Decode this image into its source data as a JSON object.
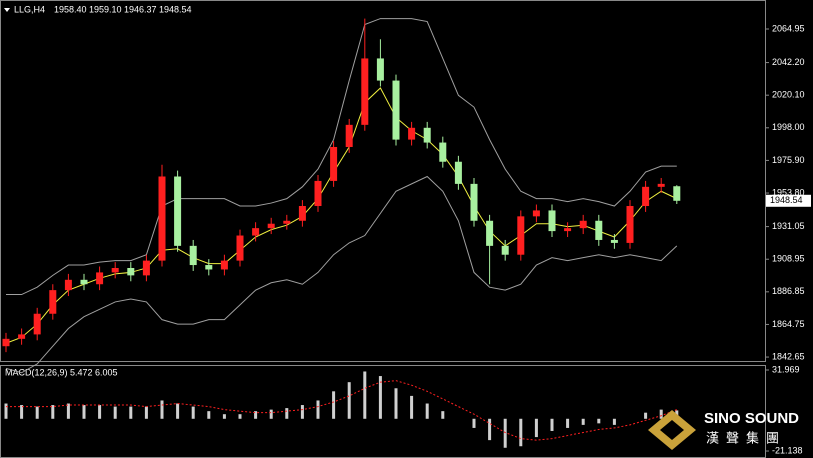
{
  "chart_data": [
    {
      "type": "candlestick",
      "title": "LLG,H4",
      "header_values": [
        "1958.40",
        "1959.10",
        "1946.37",
        "1948.54"
      ],
      "open": [
        1850,
        1855,
        1858,
        1872,
        1888,
        1895,
        1892,
        1900,
        1903,
        1898,
        1908,
        1965,
        1918,
        1905,
        1902,
        1908,
        1925,
        1930,
        1933,
        1935,
        1945,
        1962,
        1985,
        2000,
        2045,
        2030,
        1990,
        1998,
        1988,
        1975,
        1960,
        1935,
        1918,
        1912,
        1938,
        1942,
        1928,
        1930,
        1935,
        1922,
        1920,
        1945,
        1958,
        1958.4
      ],
      "high": [
        1859,
        1862,
        1876,
        1892,
        1899,
        1899,
        1904,
        1907,
        1907,
        1912,
        1973,
        1969,
        1922,
        1909,
        1912,
        1929,
        1934,
        1937,
        1939,
        1949,
        1966,
        1989,
        2004,
        2072,
        2058,
        2034,
        2002,
        2002,
        1992,
        1979,
        1964,
        1939,
        1922,
        1942,
        1946,
        1946,
        1934,
        1939,
        1939,
        1926,
        1949,
        1962,
        1964,
        1959.1
      ],
      "low": [
        1846,
        1851,
        1854,
        1868,
        1884,
        1888,
        1888,
        1896,
        1894,
        1894,
        1904,
        1914,
        1901,
        1898,
        1898,
        1904,
        1921,
        1926,
        1929,
        1931,
        1941,
        1958,
        1981,
        1996,
        2026,
        1986,
        1986,
        1984,
        1971,
        1956,
        1931,
        1892,
        1908,
        1908,
        1934,
        1924,
        1924,
        1926,
        1918,
        1916,
        1916,
        1941,
        1954,
        1946.37
      ],
      "close": [
        1855,
        1858,
        1872,
        1888,
        1895,
        1892,
        1900,
        1903,
        1898,
        1908,
        1965,
        1918,
        1905,
        1902,
        1908,
        1925,
        1930,
        1933,
        1935,
        1945,
        1962,
        1985,
        2000,
        2045,
        2030,
        1990,
        1998,
        1988,
        1975,
        1960,
        1935,
        1918,
        1912,
        1938,
        1942,
        1928,
        1930,
        1935,
        1922,
        1920,
        1945,
        1958,
        1960,
        1948.54
      ],
      "up_color": "#ff2020",
      "down_color": "#a8f0a0",
      "series": [
        {
          "color": "#f0f040",
          "values": [
            1852,
            1856,
            1865,
            1878,
            1888,
            1892,
            1896,
            1899,
            1900,
            1903,
            1915,
            1916,
            1910,
            1906,
            1906,
            1915,
            1924,
            1929,
            1932,
            1938,
            1950,
            1968,
            1985,
            2015,
            2025,
            2005,
            1996,
            1990,
            1980,
            1965,
            1945,
            1928,
            1918,
            1925,
            1933,
            1933,
            1931,
            1932,
            1928,
            1924,
            1935,
            1948,
            1955,
            1950
          ]
        },
        {
          "color": "#a0a0a0",
          "values": [
            1885,
            1885,
            1890,
            1898,
            1905,
            1905,
            1907,
            1908,
            1908,
            1912,
            1945,
            1950,
            1950,
            1950,
            1950,
            1945,
            1945,
            1947,
            1950,
            1958,
            1970,
            1990,
            2030,
            2068,
            2072,
            2072,
            2072,
            2070,
            2045,
            2020,
            2012,
            1990,
            1970,
            1955,
            1950,
            1950,
            1948,
            1950,
            1948,
            1945,
            1955,
            1968,
            1972,
            1972
          ]
        },
        {
          "color": "#a0a0a0",
          "values": [
            1835,
            1832,
            1838,
            1850,
            1862,
            1870,
            1875,
            1880,
            1882,
            1880,
            1868,
            1865,
            1865,
            1868,
            1868,
            1878,
            1888,
            1893,
            1895,
            1892,
            1900,
            1912,
            1920,
            1925,
            1940,
            1955,
            1960,
            1965,
            1955,
            1935,
            1900,
            1890,
            1888,
            1892,
            1905,
            1910,
            1908,
            1910,
            1912,
            1910,
            1912,
            1910,
            1908,
            1918
          ]
        }
      ],
      "last_price_label": "1948.54",
      "ylim": [
        1839.3,
        2084.6
      ],
      "yticks": [
        2064.95,
        {
          "value": 2042.2,
          "label": "2042.20"
        },
        {
          "value": 2020.1,
          "label": "2020.10"
        },
        {
          "value": 1998,
          "label": "1998.00"
        },
        {
          "value": 1975.9,
          "label": "1975.90"
        },
        {
          "value": 1953.8,
          "label": "1953.80"
        },
        1931.05,
        1908.95,
        1886.85,
        1864.75,
        1842.65
      ]
    },
    {
      "type": "macd",
      "title": "MACD(12,26,9) 5.472 6.005",
      "values": [
        10,
        9,
        8,
        9,
        10,
        9,
        9,
        8,
        8,
        8,
        12,
        10,
        8,
        5,
        3,
        3,
        5,
        6,
        7,
        9,
        12,
        18,
        24,
        31,
        28,
        20,
        15,
        10,
        5,
        0,
        -6,
        -14,
        -19,
        -18,
        -12,
        -8,
        -6,
        -4,
        -3,
        -4,
        0,
        4,
        6,
        5.472
      ],
      "color": "#d0d0d0",
      "signal": {
        "color": "#ff2020",
        "values": [
          8,
          8,
          8,
          8,
          9,
          9,
          9,
          9,
          9,
          8,
          9,
          10,
          9,
          8,
          6,
          5,
          4,
          4,
          5,
          6,
          8,
          11,
          15,
          20,
          24,
          25,
          22,
          18,
          13,
          8,
          3,
          -3,
          -9,
          -13,
          -14,
          -13,
          -11,
          -9,
          -7,
          -6,
          -4,
          -1,
          2,
          6.005
        ]
      },
      "ylim": [
        -24.4,
        34.6
      ],
      "yticks": [
        31.969,
        -21.138
      ]
    }
  ],
  "logo": {
    "name": "SINO SOUND",
    "subtitle": "漢聲集團"
  }
}
